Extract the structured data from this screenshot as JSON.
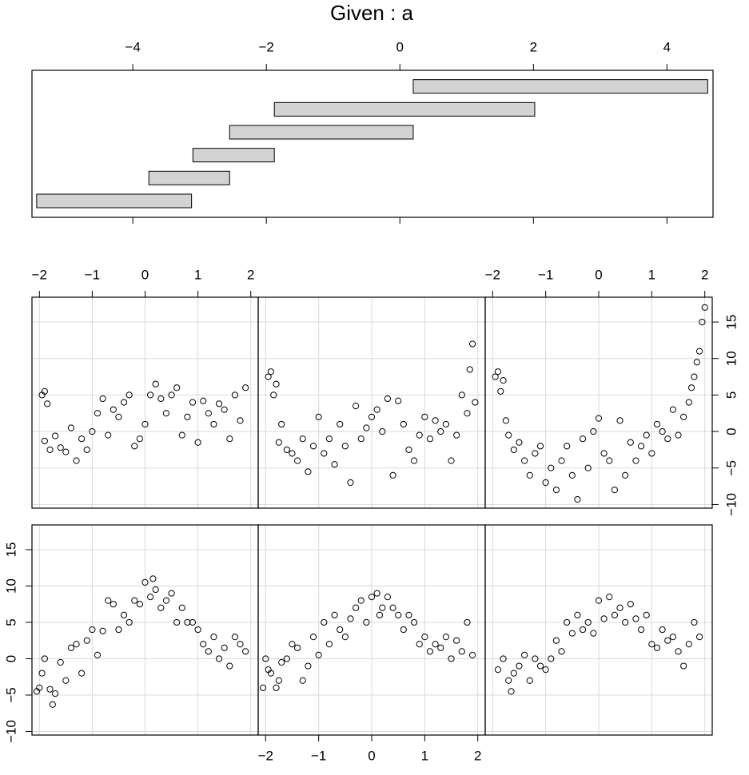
{
  "chart_data": {
    "type": "coplot",
    "title": "Given : a",
    "given": {
      "xlim": [
        -5.51,
        4.69
      ],
      "ticks": [
        {
          "value": -4,
          "label": "−4"
        },
        {
          "value": -2,
          "label": "−2"
        },
        0,
        2,
        4
      ],
      "intervals": [
        [
          -5.44,
          -3.12
        ],
        [
          -3.76,
          -2.55
        ],
        [
          -3.1,
          -1.88
        ],
        [
          -2.55,
          0.2
        ],
        [
          -1.88,
          2.02
        ],
        [
          0.2,
          4.61
        ]
      ],
      "fill": "#d3d3d3"
    },
    "xlim": [
      -2.14,
      2.14
    ],
    "ylim": [
      -10.5,
      18.4
    ],
    "xticks": [
      {
        "value": -2,
        "label": "−2"
      },
      {
        "value": -1,
        "label": "−1"
      },
      0,
      1,
      2
    ],
    "yticks": [
      {
        "value": -10,
        "label": "−10"
      },
      {
        "value": -5,
        "label": "−5"
      },
      0,
      5,
      10,
      15
    ],
    "grid": true,
    "panels": [
      {
        "x": [
          -2.05,
          -2.0,
          -1.95,
          -1.9,
          -1.8,
          -1.75,
          -1.7,
          -1.6,
          -1.5,
          -1.4,
          -1.3,
          -1.2,
          -1.1,
          -1.0,
          -0.9,
          -0.8,
          -0.7,
          -0.6,
          -0.5,
          -0.4,
          -0.3,
          -0.2,
          -0.1,
          0.0,
          0.1,
          0.15,
          0.2,
          0.3,
          0.4,
          0.5,
          0.6,
          0.7,
          0.8,
          0.9,
          1.0,
          1.1,
          1.2,
          1.3,
          1.4,
          1.5,
          1.6,
          1.7,
          1.8,
          1.9
        ],
        "y": [
          -4.5,
          -4,
          -2,
          0,
          -4.2,
          -6.3,
          -4.8,
          -0.5,
          -3,
          1.5,
          2,
          -2,
          2.5,
          4,
          0.5,
          3.8,
          8,
          7.5,
          4,
          6,
          5,
          8,
          7.5,
          10.5,
          8.5,
          11,
          9.5,
          7,
          8,
          9,
          5,
          7,
          5,
          5,
          4,
          2,
          1,
          3,
          0,
          1.5,
          -1,
          3,
          2,
          1
        ]
      },
      {
        "x": [
          -2.05,
          -2.0,
          -1.95,
          -1.9,
          -1.8,
          -1.75,
          -1.7,
          -1.6,
          -1.5,
          -1.4,
          -1.3,
          -1.2,
          -1.1,
          -1.0,
          -0.9,
          -0.8,
          -0.7,
          -0.6,
          -0.5,
          -0.4,
          -0.3,
          -0.2,
          -0.1,
          0.0,
          0.1,
          0.15,
          0.2,
          0.3,
          0.4,
          0.5,
          0.6,
          0.7,
          0.8,
          0.9,
          1.0,
          1.1,
          1.2,
          1.3,
          1.4,
          1.5,
          1.6,
          1.7,
          1.8,
          1.9
        ],
        "y": [
          -4,
          0,
          -1.5,
          -2,
          -4,
          -3,
          -0.5,
          0,
          2,
          1.5,
          -3,
          -1,
          3,
          0.5,
          5,
          2,
          6,
          4,
          3,
          5.5,
          7,
          8,
          5,
          8.5,
          9,
          6,
          7,
          8.5,
          7,
          6,
          4,
          6,
          5,
          2,
          3,
          1,
          2,
          1.5,
          3,
          0,
          2.5,
          1,
          5,
          0.5
        ]
      },
      {
        "x": [
          -1.9,
          -1.8,
          -1.7,
          -1.65,
          -1.6,
          -1.5,
          -1.4,
          -1.3,
          -1.2,
          -1.1,
          -1.0,
          -0.9,
          -0.8,
          -0.7,
          -0.6,
          -0.5,
          -0.4,
          -0.3,
          -0.2,
          -0.1,
          0,
          0.1,
          0.2,
          0.3,
          0.4,
          0.5,
          0.6,
          0.7,
          0.8,
          0.9,
          1.0,
          1.1,
          1.2,
          1.3,
          1.4,
          1.5,
          1.6,
          1.7,
          1.8,
          1.9
        ],
        "y": [
          -1.5,
          0,
          -3,
          -4.5,
          -2,
          -1,
          0.5,
          -3,
          0,
          -1,
          -1.5,
          0,
          2.5,
          1,
          5,
          3.5,
          6,
          4,
          5,
          3.5,
          8,
          5.5,
          8.5,
          6,
          7,
          5,
          7.5,
          5.5,
          4,
          6,
          2,
          1.5,
          4,
          2.5,
          3,
          1,
          -1,
          2,
          5,
          3
        ]
      },
      {
        "x": [
          -1.95,
          -1.9,
          -1.85,
          -1.9,
          -1.8,
          -1.7,
          -1.6,
          -1.5,
          -1.4,
          -1.3,
          -1.2,
          -1.1,
          -1.0,
          -0.9,
          -0.8,
          -0.7,
          -0.6,
          -0.5,
          -0.4,
          -0.3,
          -0.2,
          -0.1,
          0,
          0.1,
          0.2,
          0.3,
          0.4,
          0.5,
          0.6,
          0.7,
          0.8,
          0.9,
          1.0,
          1.1,
          1.2,
          1.3,
          1.4,
          1.5,
          1.6,
          1.7,
          1.8,
          1.9
        ],
        "y": [
          5,
          5.5,
          3.8,
          -1.3,
          -2.5,
          -0.6,
          -2.2,
          -2.8,
          0.5,
          -4,
          -1,
          -2.5,
          0,
          2.5,
          4.5,
          -0.5,
          3,
          2,
          4,
          5,
          -2,
          -1,
          1,
          5,
          6.5,
          4.5,
          2.5,
          5,
          6,
          -0.5,
          2,
          4,
          -1.5,
          4.2,
          2.5,
          1,
          3.8,
          3,
          -1,
          5,
          1.5,
          6
        ]
      },
      {
        "x": [
          -1.95,
          -1.9,
          -1.85,
          -1.8,
          -1.75,
          -1.7,
          -1.6,
          -1.5,
          -1.4,
          -1.3,
          -1.2,
          -1.1,
          -1.0,
          -0.9,
          -0.8,
          -0.7,
          -0.6,
          -0.5,
          -0.4,
          -0.3,
          -0.2,
          -0.1,
          0,
          0.1,
          0.2,
          0.3,
          0.4,
          0.5,
          0.6,
          0.7,
          0.8,
          0.9,
          1.0,
          1.1,
          1.2,
          1.3,
          1.4,
          1.5,
          1.6,
          1.7,
          1.8,
          1.85,
          1.9,
          1.95
        ],
        "y": [
          7.5,
          8.2,
          5,
          6.5,
          -1.5,
          1,
          -2.5,
          -3,
          -4,
          -1,
          -5.5,
          -2,
          2,
          -3,
          -1,
          -4.5,
          1,
          -2,
          -7,
          3.5,
          -1,
          0.5,
          2,
          3,
          0,
          4.5,
          -6,
          4.2,
          1,
          -2.5,
          -4,
          -0.5,
          2,
          -1,
          1.5,
          0,
          1,
          -4,
          -0.5,
          5,
          2.5,
          8.5,
          12,
          4
        ]
      },
      {
        "x": [
          -1.95,
          -1.9,
          -1.85,
          -1.8,
          -1.75,
          -1.7,
          -1.6,
          -1.5,
          -1.4,
          -1.3,
          -1.2,
          -1.1,
          -1.0,
          -0.9,
          -0.8,
          -0.7,
          -0.6,
          -0.5,
          -0.4,
          -0.3,
          -0.2,
          -0.1,
          0,
          0.1,
          0.2,
          0.3,
          0.4,
          0.5,
          0.6,
          0.7,
          0.8,
          0.9,
          1.0,
          1.1,
          1.2,
          1.3,
          1.4,
          1.5,
          1.6,
          1.7,
          1.75,
          1.8,
          1.85,
          1.9,
          1.95,
          2.0
        ],
        "y": [
          7.5,
          8.2,
          5.5,
          7,
          1.5,
          -0.5,
          -2.5,
          -1.5,
          -4,
          -6,
          -3,
          -2,
          -7,
          -5,
          -8,
          -4,
          -2,
          -6,
          -9.3,
          -1,
          -5,
          0,
          1.8,
          -3,
          -4,
          -8,
          1.5,
          -6,
          -1.5,
          -4,
          -2,
          -0.5,
          -3,
          1,
          0,
          -1,
          3,
          -0.5,
          2,
          4,
          6,
          7.5,
          9.5,
          11,
          15,
          17
        ]
      }
    ]
  }
}
